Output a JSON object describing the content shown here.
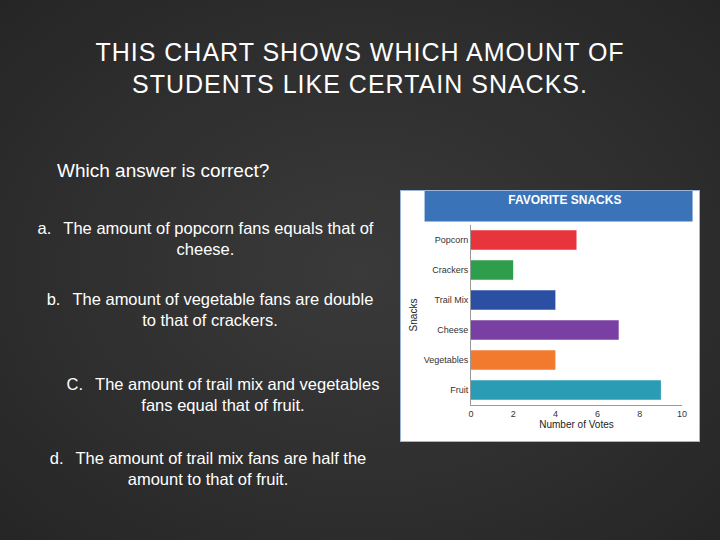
{
  "slide": {
    "heading": "THIS CHART SHOWS WHICH AMOUNT OF STUDENTS LIKE CERTAIN SNACKS.",
    "question": "Which answer is correct?",
    "options": [
      {
        "label": "a.",
        "text": "The amount of popcorn fans equals that of cheese."
      },
      {
        "label": "b.",
        "text": "The amount of vegetable fans are double to that of crackers."
      },
      {
        "label": "C.",
        "text": "The amount of trail mix and vegetables fans equal that of fruit."
      },
      {
        "label": "d.",
        "text": "The amount of trail mix fans are half the amount to that of fruit."
      }
    ]
  },
  "chart_data": {
    "type": "bar",
    "orientation": "horizontal",
    "title": "FAVORITE SNACKS",
    "x_label": "Number of Votes",
    "y_label": "Snacks",
    "categories": [
      "Popcorn",
      "Crackers",
      "Trail Mix",
      "Cheese",
      "Vegetables",
      "Fruit"
    ],
    "values": [
      5,
      2,
      4,
      7,
      4,
      9
    ],
    "colors": [
      "#e8343c",
      "#2f9e4c",
      "#2b4fa3",
      "#7a3fa3",
      "#f27a2e",
      "#2a9cb3"
    ],
    "xlim": [
      0,
      10
    ],
    "xticks": [
      0,
      2,
      4,
      6,
      8,
      10
    ],
    "grid": false
  }
}
